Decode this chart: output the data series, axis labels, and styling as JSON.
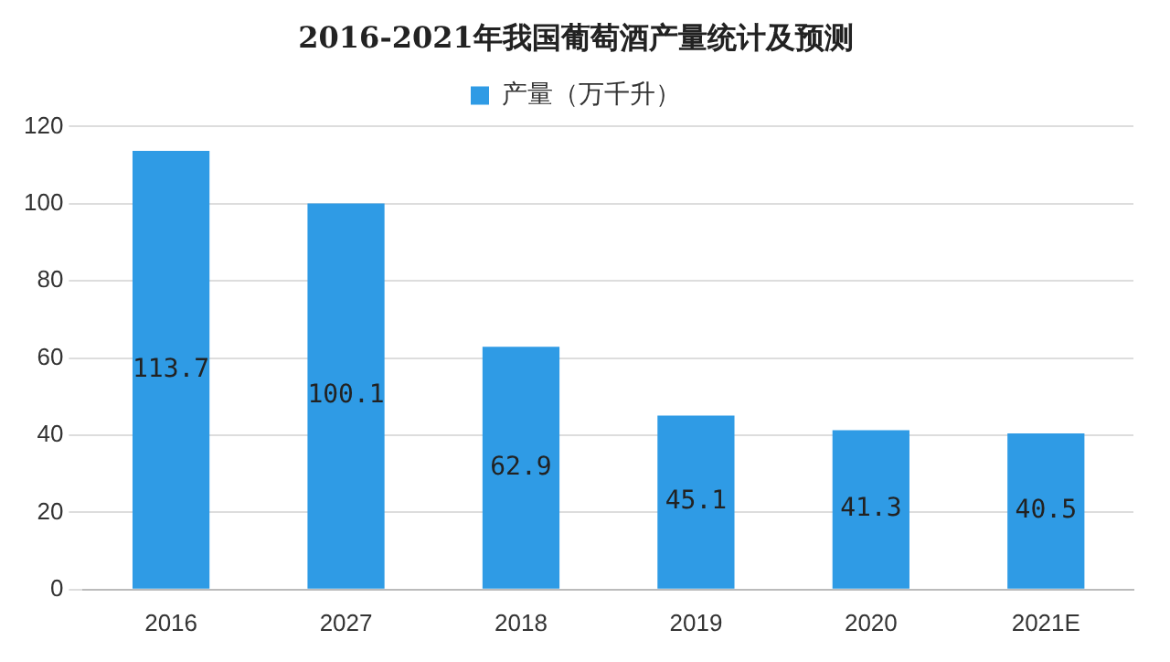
{
  "chart_data": {
    "type": "bar",
    "title": "2016-2021年我国葡萄酒产量统计及预测",
    "categories": [
      "2016",
      "2027",
      "2018",
      "2019",
      "2020",
      "2021E"
    ],
    "series": [
      {
        "name": "产量（万千升）",
        "color": "#2f9be5",
        "values": [
          113.7,
          100.1,
          62.9,
          45.1,
          41.3,
          40.5
        ]
      }
    ],
    "ylim": [
      0,
      120
    ],
    "yticks": [
      0,
      20,
      40,
      60,
      80,
      100,
      120
    ],
    "grid": "y",
    "legend": "top",
    "data_labels": true
  }
}
